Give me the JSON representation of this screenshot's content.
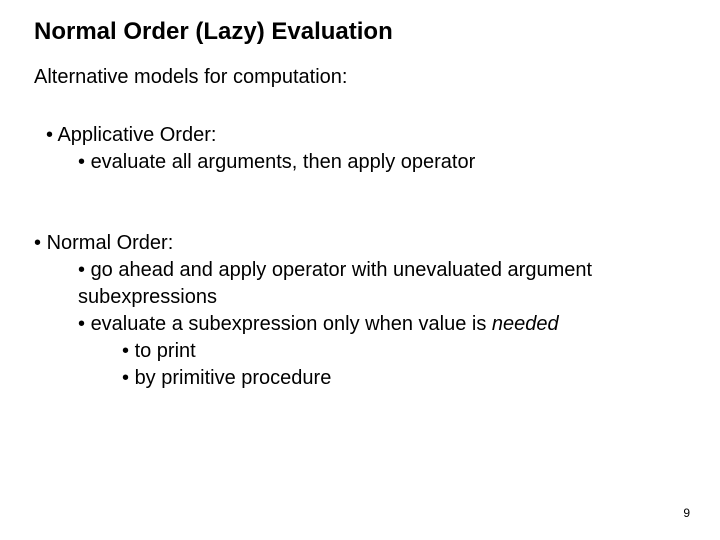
{
  "background_color": "#ffffff",
  "text_color": "#000000",
  "font_family": "Arial, Helvetica, sans-serif",
  "title": {
    "text": "Normal Order (Lazy) Evaluation",
    "fontsize": 24,
    "weight": "bold"
  },
  "subtitle": {
    "text": "Alternative models for computation:",
    "fontsize": 20
  },
  "block1": {
    "fontsize": 20,
    "lines": [
      {
        "bullet": "•  ",
        "text": "Applicative Order:",
        "indent": 1
      },
      {
        "bullet": "•  ",
        "text": "evaluate all arguments, then apply operator",
        "indent": 2
      }
    ]
  },
  "block2": {
    "fontsize": 20,
    "lines": [
      {
        "bullet": "• ",
        "text": "Normal Order:",
        "indent": 1
      },
      {
        "bullet": "• ",
        "text_a": "go ahead and apply operator with unevaluated argument",
        "text_b": "subexpressions",
        "indent": 2
      },
      {
        "bullet": "• ",
        "text_a": "evaluate a subexpression only when value is ",
        "text_italic": "needed",
        "indent": 2
      },
      {
        "bullet": "• ",
        "text": "to print",
        "indent": 3
      },
      {
        "bullet": "• ",
        "text": "by primitive procedure",
        "indent": 3
      }
    ]
  },
  "page_number": "9"
}
